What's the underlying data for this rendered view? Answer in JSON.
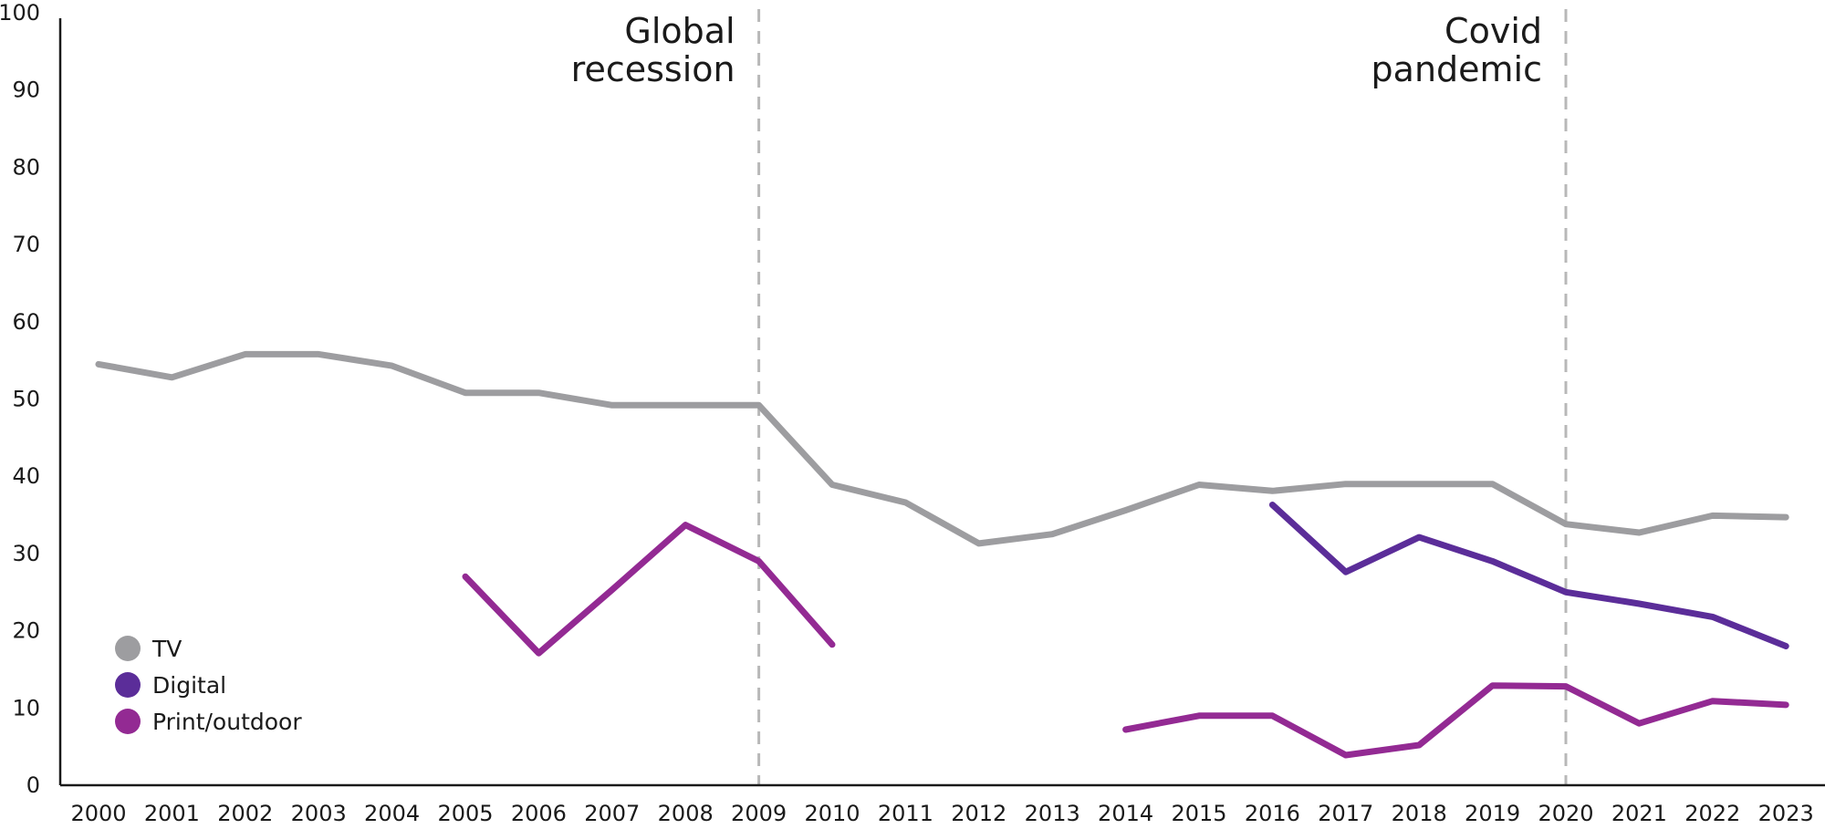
{
  "chart_data": {
    "type": "line",
    "title": "",
    "xlabel": "",
    "ylabel": "",
    "ylim": [
      0,
      100
    ],
    "yticks": [
      0,
      10,
      20,
      30,
      40,
      50,
      60,
      70,
      80,
      90,
      100
    ],
    "x": [
      "2000",
      "2001",
      "2002",
      "2003",
      "2004",
      "2005",
      "2006",
      "2007",
      "2008",
      "2009",
      "2010",
      "2011",
      "2012",
      "2013",
      "2014",
      "2015",
      "2016",
      "2017",
      "2018",
      "2019",
      "2020",
      "2021",
      "2022",
      "2023"
    ],
    "grid": false,
    "legend_position": "bottom-left",
    "series": [
      {
        "name": "TV",
        "color": "#9d9da0",
        "values": [
          54.5,
          52.8,
          55.8,
          55.8,
          54.3,
          50.8,
          50.8,
          49.2,
          49.2,
          49.2,
          38.9,
          36.6,
          31.3,
          32.5,
          35.6,
          38.9,
          38.1,
          39.0,
          39.0,
          39.0,
          33.8,
          32.7,
          34.9,
          34.7
        ]
      },
      {
        "name": "Digital",
        "color": "#5b2d99",
        "values": [
          null,
          null,
          null,
          null,
          null,
          null,
          null,
          null,
          null,
          null,
          null,
          null,
          null,
          null,
          null,
          null,
          36.3,
          27.6,
          32.1,
          29.0,
          25.0,
          23.5,
          21.8,
          18.0
        ]
      },
      {
        "name": "Print/outdoor",
        "color": "#932a93",
        "values": [
          null,
          null,
          null,
          null,
          null,
          27.0,
          17.1,
          25.3,
          33.7,
          29.0,
          18.2,
          null,
          null,
          null,
          7.2,
          9.0,
          9.0,
          3.9,
          5.2,
          12.9,
          12.8,
          8.0,
          10.9,
          10.4
        ]
      }
    ],
    "annotations": [
      {
        "x": "2009",
        "lines": [
          "Global",
          "recession"
        ]
      },
      {
        "x": "2020",
        "lines": [
          "Covid",
          "pandemic"
        ]
      }
    ]
  }
}
